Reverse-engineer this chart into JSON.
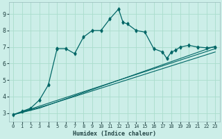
{
  "title": "",
  "xlabel": "Humidex (Indice chaleur)",
  "bg_color": "#cceee8",
  "grid_color": "#aaddcc",
  "line_color": "#006666",
  "xlim": [
    -0.5,
    23.5
  ],
  "ylim": [
    2.5,
    9.7
  ],
  "xticks": [
    0,
    1,
    2,
    3,
    4,
    5,
    6,
    7,
    8,
    9,
    10,
    11,
    12,
    13,
    14,
    15,
    16,
    17,
    18,
    19,
    20,
    21,
    22,
    23
  ],
  "yticks": [
    3,
    4,
    5,
    6,
    7,
    8,
    9
  ],
  "series1_x": [
    0,
    1,
    2,
    3,
    4,
    5,
    5,
    6,
    7,
    8,
    9,
    10,
    11,
    12,
    12.5,
    13,
    14,
    15,
    16,
    17,
    17.5,
    18,
    18.5,
    19,
    20,
    21,
    22,
    23
  ],
  "series1_y": [
    2.9,
    3.1,
    3.3,
    3.8,
    4.7,
    6.9,
    6.9,
    6.9,
    6.6,
    7.6,
    8.0,
    8.0,
    8.7,
    9.3,
    8.5,
    8.4,
    8.0,
    7.9,
    6.9,
    6.7,
    6.3,
    6.7,
    6.8,
    7.0,
    7.1,
    7.0,
    6.95,
    7.0
  ],
  "line2": [
    [
      0,
      23
    ],
    [
      2.9,
      6.9
    ]
  ],
  "line3": [
    [
      0,
      4,
      23
    ],
    [
      2.9,
      3.5,
      6.7
    ]
  ],
  "line4": [
    [
      0,
      3,
      23
    ],
    [
      2.9,
      3.3,
      7.05
    ]
  ]
}
